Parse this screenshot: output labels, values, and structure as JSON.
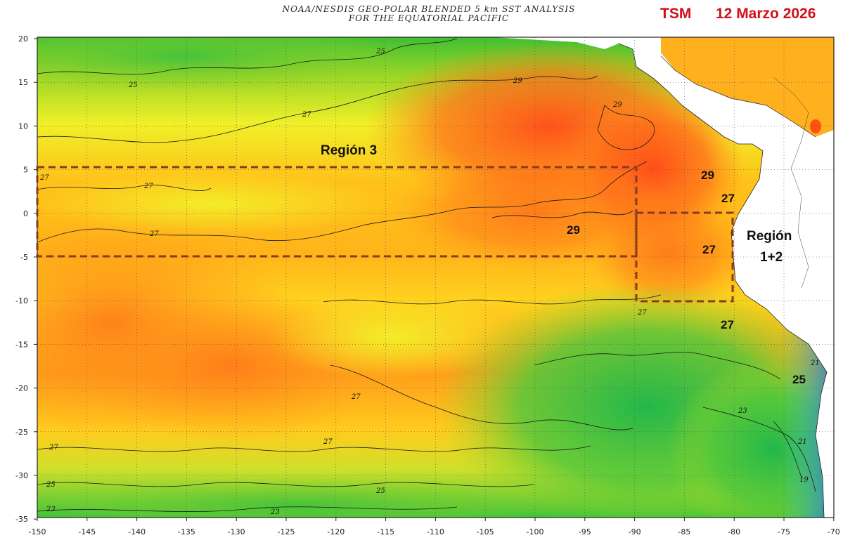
{
  "header": {
    "title_line1": "NOAA/NESDIS GEO-POLAR BLENDED 5 km SST ANALYSIS",
    "title_line2": "FOR THE EQUATORIAL PACIFIC",
    "variable_tag": "TSM",
    "date_tag": "12 Marzo 2026"
  },
  "axes": {
    "lon_ticks": [
      "-150",
      "-145",
      "-140",
      "-135",
      "-130",
      "-125",
      "-120",
      "-115",
      "-110",
      "-105",
      "-100",
      "-95",
      "-90",
      "-85",
      "-80",
      "-75",
      "-70"
    ],
    "lat_ticks": [
      "20",
      "15",
      "10",
      "5",
      "0",
      "-5",
      "-10",
      "-15",
      "-20",
      "-25",
      "-30",
      "-35"
    ]
  },
  "regions": [
    {
      "name": "Región 3",
      "lon": [
        -150,
        -90
      ],
      "lat": [
        -5,
        5
      ]
    },
    {
      "name": "Región 1+2",
      "lon": [
        -90,
        -80
      ],
      "lat": [
        -10,
        0
      ]
    }
  ],
  "region_labels": {
    "region3": "Región 3",
    "region12_line1": "Región",
    "region12_line2": "1+2"
  },
  "big_labels": [
    "29",
    "27",
    "29",
    "27",
    "27",
    "25"
  ],
  "contour_labels": [
    "25",
    "25",
    "27",
    "27",
    "27",
    "27",
    "29",
    "29",
    "27",
    "27",
    "27",
    "27",
    "25",
    "23",
    "23",
    "25",
    "21",
    "19",
    "21",
    "23"
  ],
  "colors": {
    "land": "#ffffff",
    "region_box": "#8b3a1a",
    "header_accent": "#d0101a"
  }
}
